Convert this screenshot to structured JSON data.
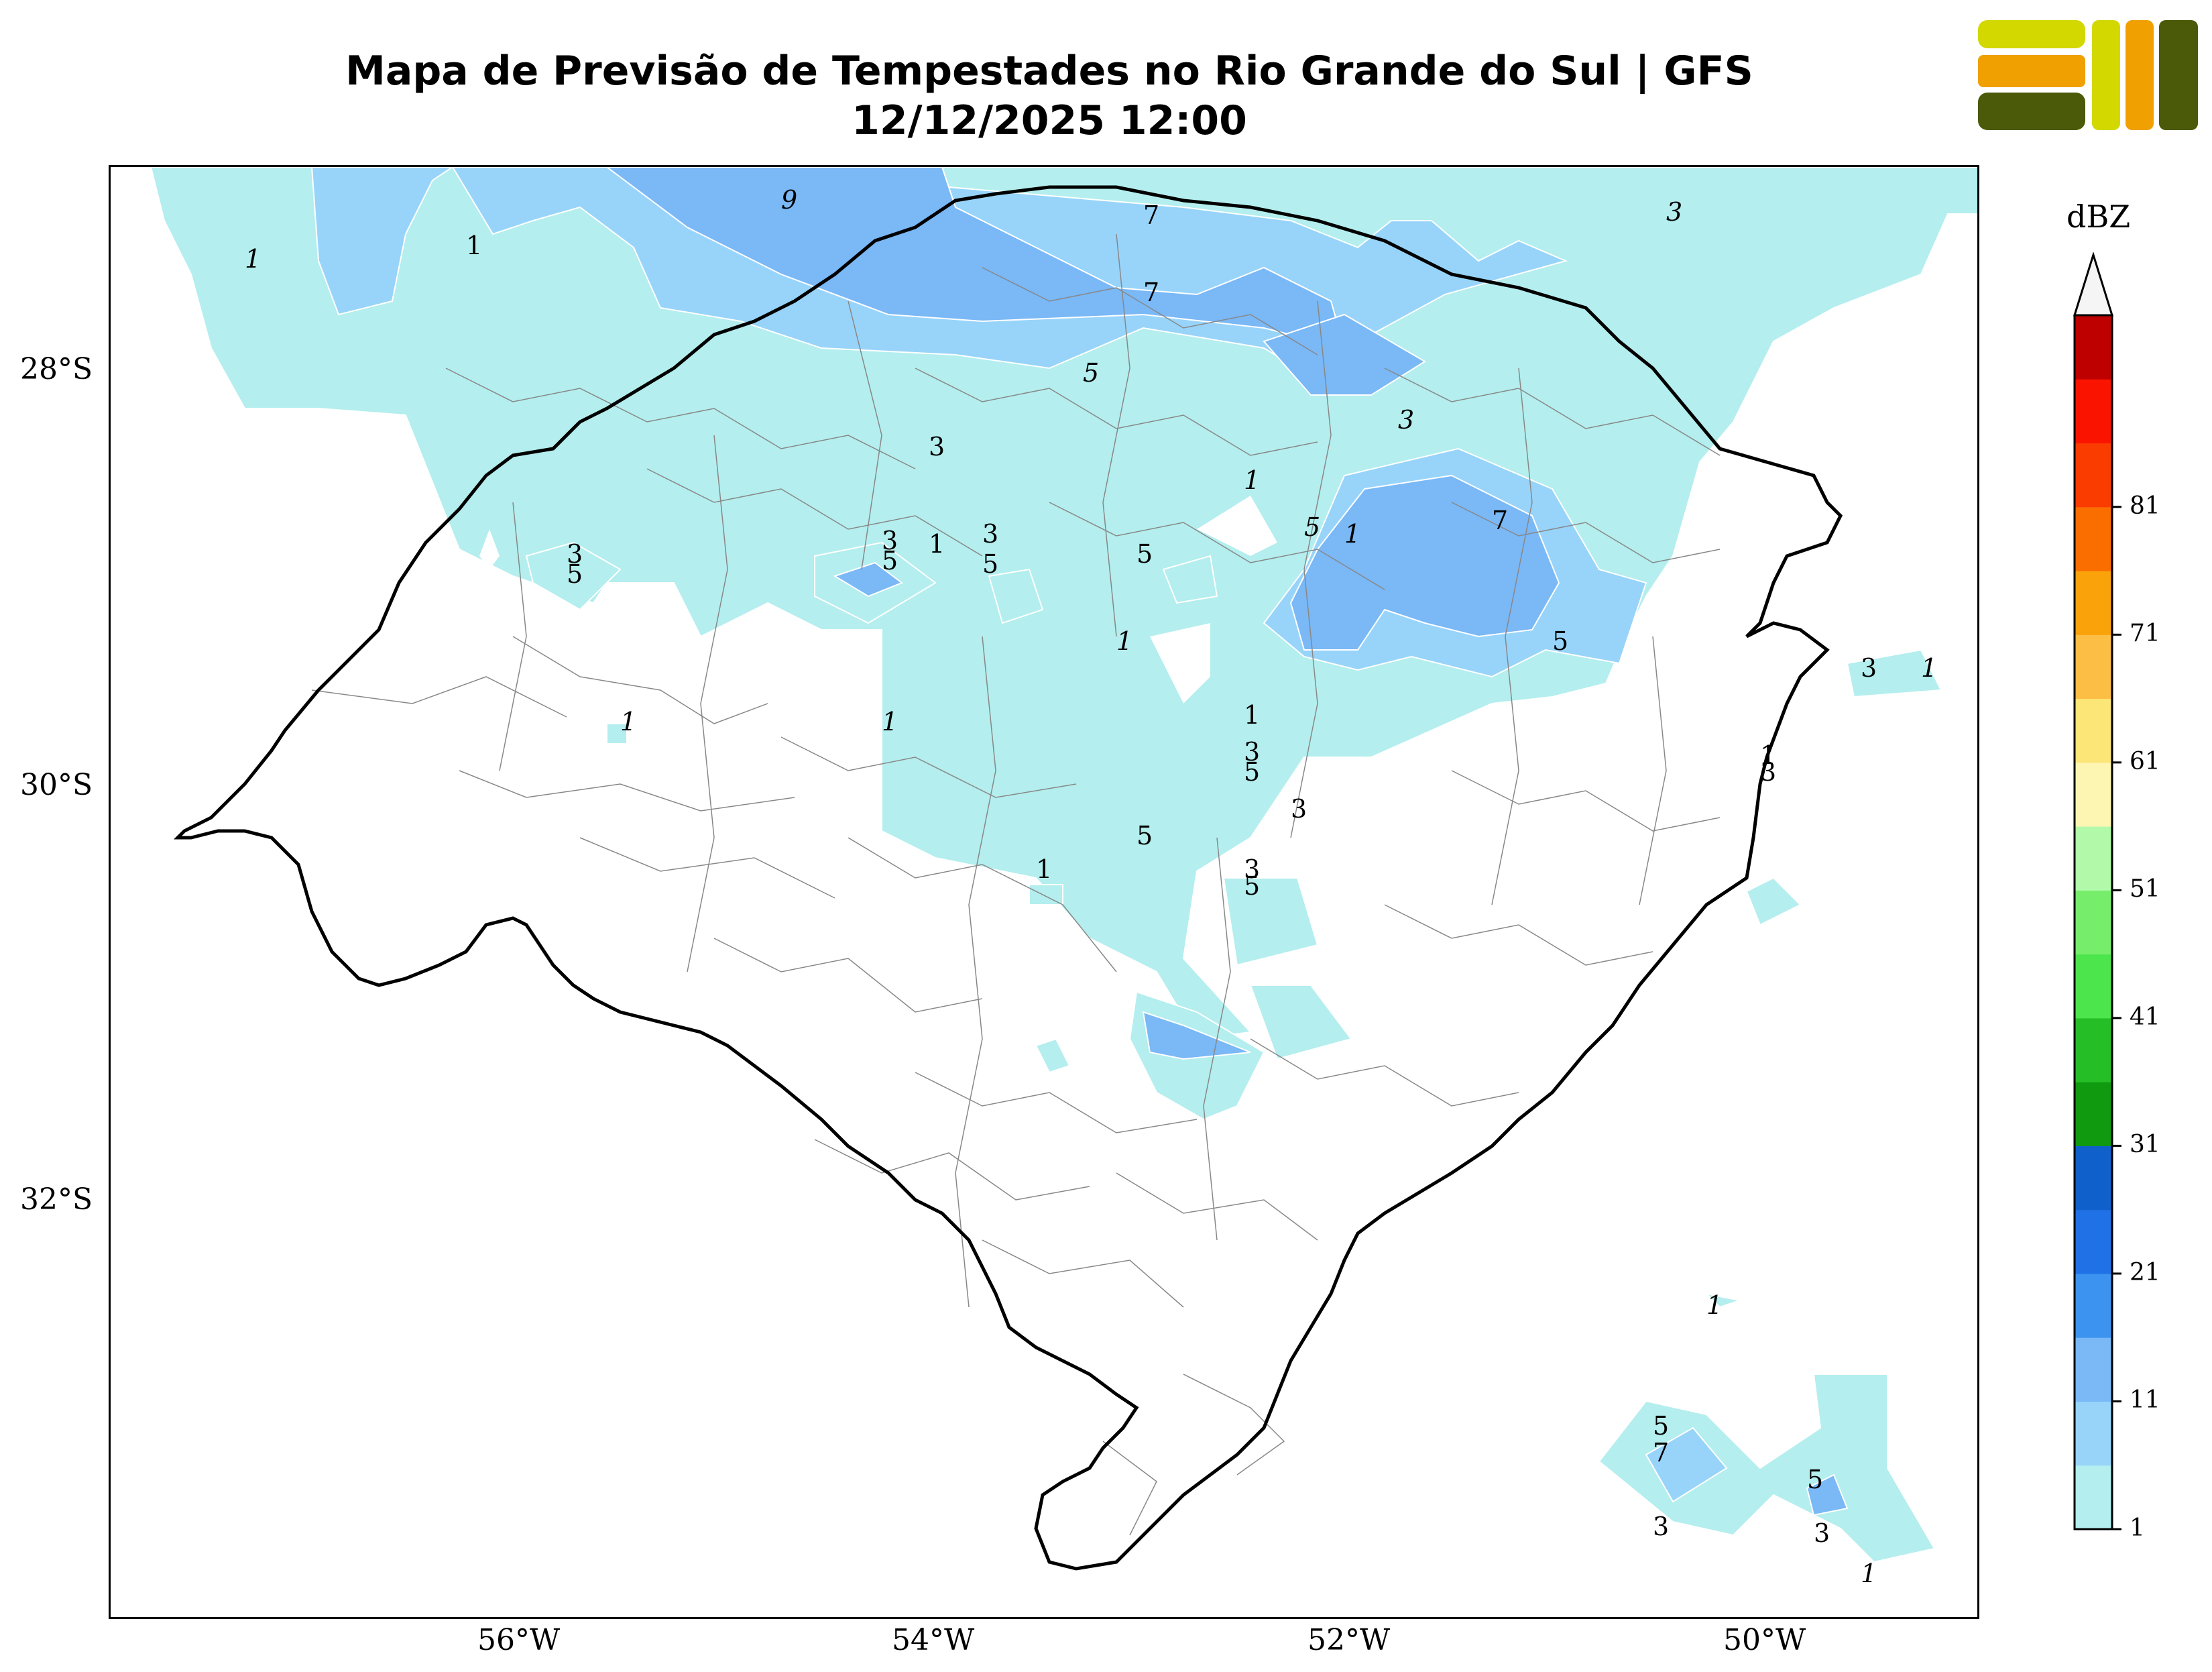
{
  "header": {
    "title_line1": "Mapa de Previsão de Tempestades no Rio Grande do Sul | GFS",
    "title_line2": "12/12/2025 12:00"
  },
  "axes": {
    "lat_ticks": [
      "28°S",
      "30°S",
      "32°S"
    ],
    "lon_ticks": [
      "56°W",
      "54°W",
      "52°W",
      "50°W"
    ]
  },
  "colorbar": {
    "unit": "dBZ",
    "ticks": [
      "1",
      "11",
      "21",
      "31",
      "41",
      "51",
      "61",
      "71",
      "81"
    ],
    "colors": [
      "#b4eeee",
      "#98d4fa",
      "#7ab8f6",
      "#3c94f0",
      "#2070e6",
      "#1060cc",
      "#0f9a0f",
      "#26be26",
      "#4ce64c",
      "#76ee6c",
      "#b2faaa",
      "#fdf5b2",
      "#fde678",
      "#fdbe46",
      "#faa20a",
      "#fa6e00",
      "#fa3c00",
      "#fa1400",
      "#be0000"
    ],
    "extend": "max"
  },
  "contour_labels": [
    "1",
    "3",
    "5",
    "7",
    "9"
  ],
  "logo": {
    "name": "logo-mark"
  }
}
